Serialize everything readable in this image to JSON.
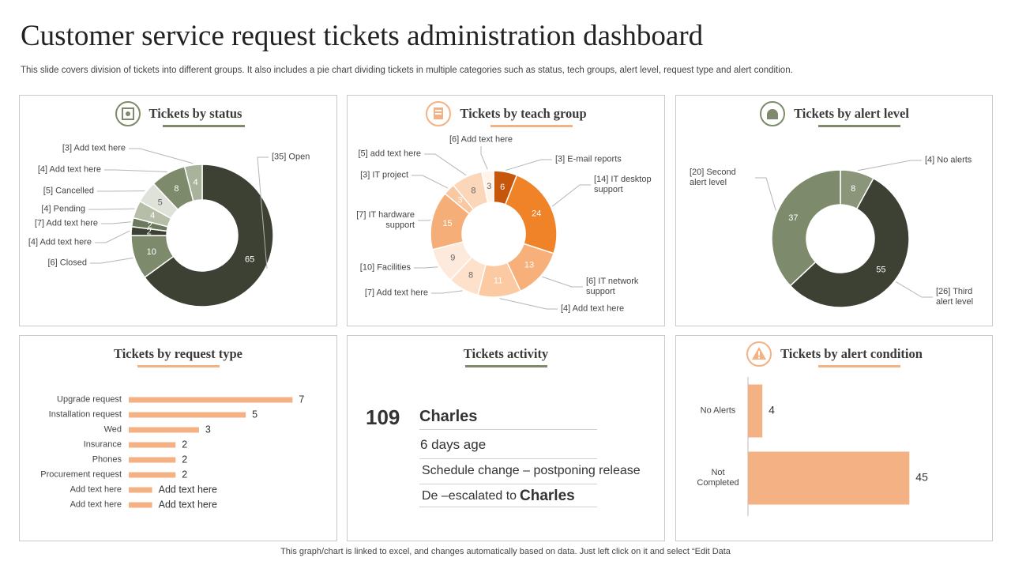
{
  "title": "Customer service request tickets administration dashboard",
  "subtitle": "This slide covers division of tickets into different groups. It also includes a pie chart dividing tickets in multiple categories such as status, tech groups, alert level, request type  and alert condition.",
  "footer": "This graph/chart is linked to excel, and changes automatically based on data. Just left click on it and select “Edit Data",
  "chart_data": [
    {
      "type": "donut",
      "title": "Tickets by status",
      "categories": [
        "[35] Open",
        "[6] Closed",
        "[4] Add text here",
        "[7] Add text here",
        "[4] Pending",
        "[5] Cancelled",
        "[4] Add text here",
        "[3] Add text here"
      ],
      "values": [
        65,
        10,
        2,
        2,
        4,
        5,
        8,
        4
      ],
      "colors": [
        "#3d4133",
        "#7d8b6c",
        "#3d4133",
        "#6b7a5c",
        "#b6bea9",
        "#dfe2d8",
        "#7d8b6c",
        "#a9b39b"
      ]
    },
    {
      "type": "donut",
      "title": "Tickets by teach group",
      "categories": [
        "[3] E-mail reports",
        "[14] IT desktop support",
        "[6] IT network support",
        "[4] Add text here",
        "[7] Add text here",
        "[10] Facilities",
        "[7] IT hardware support",
        "[3] IT project",
        "[5] add text here",
        "[6] Add text here"
      ],
      "values": [
        6,
        24,
        13,
        11,
        8,
        9,
        15,
        3,
        8,
        3
      ],
      "colors": [
        "#c5560c",
        "#f08228",
        "#f7b07a",
        "#fbc9a2",
        "#fde1cb",
        "#fdeadd",
        "#f6ae78",
        "#f9c7a0",
        "#fbd6b9",
        "#fff3ea"
      ]
    },
    {
      "type": "donut",
      "title": "Tickets by alert level",
      "categories": [
        "[4] No alerts",
        "[26] Third alert level",
        "[20] Second alert level"
      ],
      "values": [
        8,
        55,
        37
      ],
      "colors": [
        "#8a9579",
        "#3d4133",
        "#7d8b6c"
      ]
    },
    {
      "type": "hbar",
      "title": "Tickets by request type",
      "categories": [
        "Upgrade request",
        "Installation request",
        "Wed",
        "Insurance",
        "Phones",
        "Procurement request",
        "Add text here",
        "Add text here"
      ],
      "values": [
        7,
        5,
        3,
        2,
        2,
        2,
        1,
        1
      ],
      "value_labels": [
        "7",
        "5",
        "3",
        "2",
        "2",
        "2",
        "Add text here",
        "Add text here"
      ],
      "color": "#f4b183",
      "xlim": [
        0,
        8
      ]
    },
    {
      "type": "hbar",
      "title": "Tickets by alert condition",
      "categories": [
        "No Alerts",
        "Not Completed"
      ],
      "values": [
        4,
        45
      ],
      "color": "#f4b183",
      "xlim": [
        0,
        50
      ]
    }
  ],
  "activity": {
    "title": "Tickets activity",
    "count": 109,
    "name": "Charles",
    "age": "6 days age",
    "event": "Schedule change – postponing release",
    "escalation": "De –escalated to",
    "escalated_to": "Charles"
  }
}
